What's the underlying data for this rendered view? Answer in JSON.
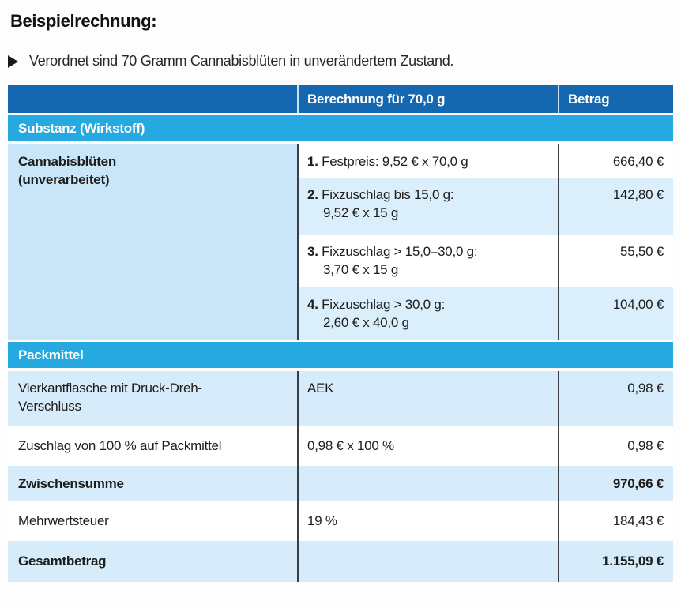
{
  "title": "Beispielrechnung:",
  "intro": "Verordnet sind 70 Gramm Cannabisblüten in unverändertem Zustand.",
  "colors": {
    "header_bg": "#1568af",
    "section_bg": "#25a9e0",
    "light_row_bg": "#d7ecfb",
    "name_cell_bg": "#c9e6f8",
    "divider": "#3a3f43"
  },
  "table": {
    "header": {
      "calc": "Berechnung für 70,0 g",
      "amount": "Betrag"
    },
    "section_substance": "Substanz (Wirkstoff)",
    "substance": {
      "name": "Cannabisblüten\n(unverarbeitet)",
      "rows": [
        {
          "num": "1.",
          "line1": "Festpreis: 9,52 € x 70,0 g",
          "line2": "",
          "amount": "666,40 €"
        },
        {
          "num": "2.",
          "line1": "Fixzuschlag bis 15,0 g:",
          "line2": "9,52 € x 15 g",
          "amount": "142,80 €"
        },
        {
          "num": "3.",
          "line1": "Fixzuschlag > 15,0–30,0 g:",
          "line2": "3,70 € x 15 g",
          "amount": "55,50 €"
        },
        {
          "num": "4.",
          "line1": "Fixzuschlag > 30,0 g:",
          "line2": "2,60 € x 40,0 g",
          "amount": "104,00 €"
        }
      ]
    },
    "section_packaging": "Packmittel",
    "rows": [
      {
        "label": "Vierkantflasche mit Druck-Dreh-\nVerschluss",
        "calc": "AEK",
        "amount": "0,98 €"
      },
      {
        "label": "Zuschlag von 100 % auf Packmittel",
        "calc": "0,98 € x 100 %",
        "amount": "0,98 €"
      },
      {
        "label": "Zwischensumme",
        "calc": "",
        "amount": "970,66 €"
      },
      {
        "label": "Mehrwertsteuer",
        "calc": "19 %",
        "amount": "184,43 €"
      },
      {
        "label": "Gesamtbetrag",
        "calc": "",
        "amount": "1.155,09 €"
      }
    ]
  }
}
